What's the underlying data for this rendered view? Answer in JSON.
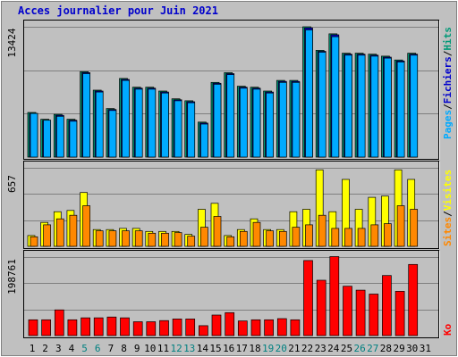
{
  "title": "Acces journalier pour Juin 2021",
  "colors": {
    "title": "#0000cc",
    "background": "#c0c0c0",
    "pages": "#00aaff",
    "hits": "#009977",
    "files": "#0000cc",
    "sites": "#ff8800",
    "visits": "#ffff00",
    "ko": "#ff0000",
    "weekend_label": "#008080"
  },
  "legend": {
    "pages": "Pages",
    "files": "Fichiers",
    "hits": "Hits",
    "sites": "Sites",
    "visits": "Visites",
    "ko": "Ko",
    "sep": "/"
  },
  "chart_data": [
    {
      "type": "bar",
      "panel": "hits-files-pages",
      "title": "Acces journalier pour Juin 2021",
      "ymax_label": "13424",
      "ylim": [
        0,
        13424
      ],
      "grid": true,
      "categories": [
        "1",
        "2",
        "3",
        "4",
        "5",
        "6",
        "7",
        "8",
        "9",
        "10",
        "11",
        "12",
        "13",
        "14",
        "15",
        "16",
        "17",
        "18",
        "19",
        "20",
        "21",
        "22",
        "23",
        "24",
        "25",
        "26",
        "27",
        "28",
        "29",
        "30",
        "31"
      ],
      "weekend_days": [
        "5",
        "6",
        "12",
        "13",
        "19",
        "20",
        "26",
        "27"
      ],
      "series": [
        {
          "name": "Hits",
          "values": [
            4600,
            3900,
            4400,
            3900,
            8800,
            6900,
            5000,
            8100,
            7200,
            7200,
            6800,
            6000,
            5800,
            3600,
            7700,
            8700,
            7300,
            7200,
            6800,
            7900,
            7900,
            13424,
            11000,
            12700,
            10700,
            10700,
            10600,
            10400,
            10000,
            10700,
            0
          ]
        },
        {
          "name": "Fichiers",
          "values": [
            4500,
            3800,
            4300,
            3800,
            8700,
            6800,
            4900,
            8000,
            7100,
            7100,
            6700,
            5900,
            5700,
            3500,
            7600,
            8600,
            7200,
            7100,
            6700,
            7800,
            7800,
            13300,
            10900,
            12600,
            10600,
            10600,
            10500,
            10300,
            9900,
            10600,
            0
          ]
        },
        {
          "name": "Pages",
          "values": [
            4500,
            3800,
            4200,
            3700,
            8600,
            6700,
            4800,
            7900,
            7000,
            7000,
            6600,
            5800,
            5600,
            3400,
            7500,
            8500,
            7100,
            7000,
            6600,
            7700,
            7700,
            13100,
            10800,
            12400,
            10500,
            10500,
            10400,
            10200,
            9800,
            10500,
            0
          ]
        }
      ]
    },
    {
      "type": "bar",
      "panel": "visits-sites",
      "ymax_label": "657",
      "ylim": [
        0,
        657
      ],
      "grid": true,
      "categories": [
        "1",
        "2",
        "3",
        "4",
        "5",
        "6",
        "7",
        "8",
        "9",
        "10",
        "11",
        "12",
        "13",
        "14",
        "15",
        "16",
        "17",
        "18",
        "19",
        "20",
        "21",
        "22",
        "23",
        "24",
        "25",
        "26",
        "27",
        "28",
        "29",
        "30",
        "31"
      ],
      "series": [
        {
          "name": "Visites",
          "values": [
            90,
            200,
            290,
            300,
            450,
            140,
            140,
            150,
            150,
            125,
            125,
            125,
            100,
            310,
            360,
            90,
            140,
            230,
            140,
            140,
            290,
            310,
            640,
            290,
            560,
            310,
            410,
            420,
            640,
            560,
            0
          ]
        },
        {
          "name": "Sites",
          "values": [
            80,
            180,
            230,
            260,
            340,
            130,
            130,
            130,
            130,
            110,
            110,
            115,
            85,
            160,
            250,
            80,
            125,
            200,
            130,
            125,
            160,
            180,
            260,
            150,
            150,
            150,
            180,
            190,
            340,
            310,
            0
          ]
        }
      ]
    },
    {
      "type": "bar",
      "panel": "ko",
      "ymax_label": "198761",
      "ylim": [
        0,
        198761
      ],
      "grid": true,
      "categories": [
        "1",
        "2",
        "3",
        "4",
        "5",
        "6",
        "7",
        "8",
        "9",
        "10",
        "11",
        "12",
        "13",
        "14",
        "15",
        "16",
        "17",
        "18",
        "19",
        "20",
        "21",
        "22",
        "23",
        "24",
        "25",
        "26",
        "27",
        "28",
        "29",
        "30",
        "31"
      ],
      "series": [
        {
          "name": "Ko",
          "values": [
            40000,
            40000,
            65000,
            40000,
            45000,
            45000,
            47000,
            45000,
            35000,
            35000,
            38000,
            42000,
            42000,
            25000,
            52000,
            58000,
            37000,
            40000,
            40000,
            43000,
            40000,
            190000,
            140000,
            200000,
            125000,
            115000,
            105000,
            152000,
            112000,
            180000,
            0
          ]
        }
      ]
    }
  ]
}
